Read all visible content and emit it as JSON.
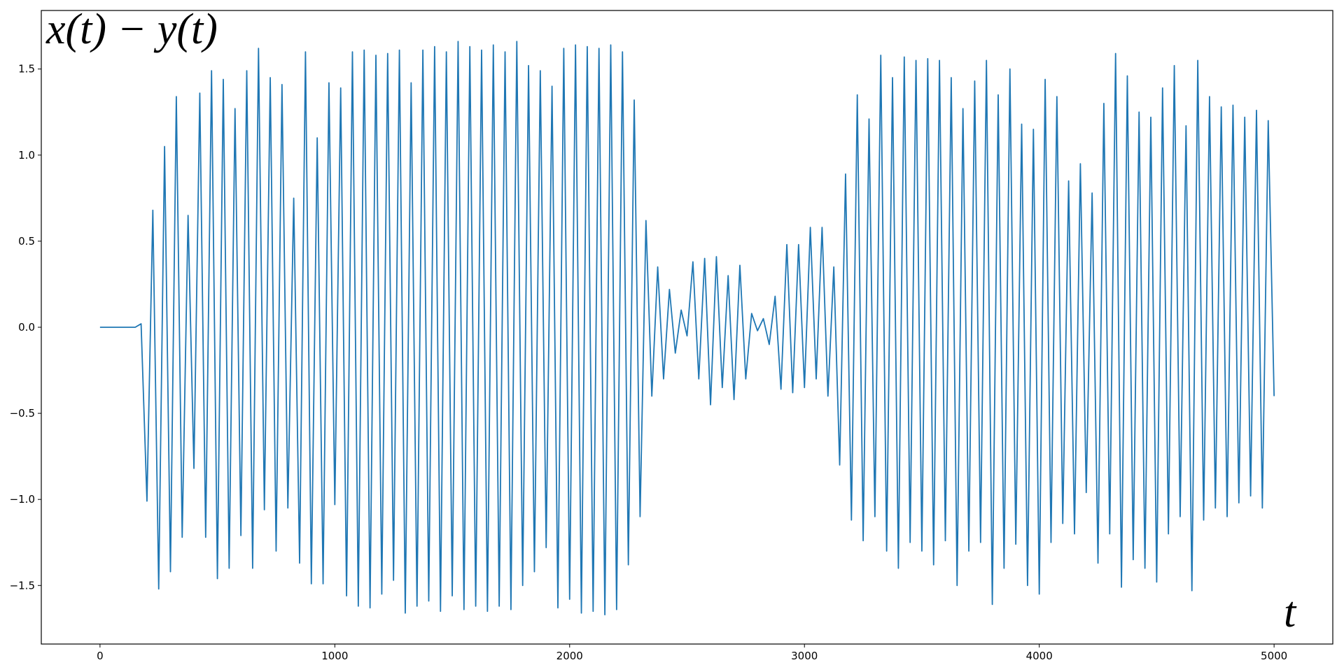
{
  "chart_data": {
    "type": "line",
    "annotation": "x(t) − y(t)",
    "x_label": "t",
    "x": [
      0,
      25,
      50,
      75,
      100,
      125,
      150,
      175,
      200,
      225,
      250,
      275,
      300,
      325,
      350,
      375,
      400,
      425,
      450,
      475,
      500,
      525,
      550,
      575,
      600,
      625,
      650,
      675,
      700,
      725,
      750,
      775,
      800,
      825,
      850,
      875,
      900,
      925,
      950,
      975,
      1000,
      1025,
      1050,
      1075,
      1100,
      1125,
      1150,
      1175,
      1200,
      1225,
      1250,
      1275,
      1300,
      1325,
      1350,
      1375,
      1400,
      1425,
      1450,
      1475,
      1500,
      1525,
      1550,
      1575,
      1600,
      1625,
      1650,
      1675,
      1700,
      1725,
      1750,
      1775,
      1800,
      1825,
      1850,
      1875,
      1900,
      1925,
      1950,
      1975,
      2000,
      2025,
      2050,
      2075,
      2100,
      2125,
      2150,
      2175,
      2200,
      2225,
      2250,
      2275,
      2300,
      2325,
      2350,
      2375,
      2400,
      2425,
      2450,
      2475,
      2500,
      2525,
      2550,
      2575,
      2600,
      2625,
      2650,
      2675,
      2700,
      2725,
      2750,
      2775,
      2800,
      2825,
      2850,
      2875,
      2900,
      2925,
      2950,
      2975,
      3000,
      3025,
      3050,
      3075,
      3100,
      3125,
      3150,
      3175,
      3200,
      3225,
      3250,
      3275,
      3300,
      3325,
      3350,
      3375,
      3400,
      3425,
      3450,
      3475,
      3500,
      3525,
      3550,
      3575,
      3600,
      3625,
      3650,
      3675,
      3700,
      3725,
      3750,
      3775,
      3800,
      3825,
      3850,
      3875,
      3900,
      3925,
      3950,
      3975,
      4000,
      4025,
      4050,
      4075,
      4100,
      4125,
      4150,
      4175,
      4200,
      4225,
      4250,
      4275,
      4300,
      4325,
      4350,
      4375,
      4400,
      4425,
      4450,
      4475,
      4500,
      4525,
      4550,
      4575,
      4600,
      4625,
      4650,
      4675,
      4700,
      4725,
      4750,
      4775,
      4800,
      4825,
      4850,
      4875,
      4900,
      4925,
      4950,
      4975,
      5000
    ],
    "series": [
      {
        "color": "#1f77b4",
        "values": [
          0,
          0,
          0,
          0,
          0,
          0,
          0,
          0.02,
          -1.01,
          0.68,
          -1.52,
          1.05,
          -1.42,
          1.34,
          -1.22,
          0.65,
          -0.82,
          1.36,
          -1.22,
          1.49,
          -1.46,
          1.44,
          -1.4,
          1.27,
          -1.21,
          1.49,
          -1.4,
          1.62,
          -1.06,
          1.45,
          -1.3,
          1.41,
          -1.05,
          0.75,
          -1.37,
          1.6,
          -1.49,
          1.1,
          -1.49,
          1.42,
          -1.03,
          1.39,
          -1.56,
          1.6,
          -1.62,
          1.61,
          -1.63,
          1.58,
          -1.55,
          1.59,
          -1.47,
          1.61,
          -1.66,
          1.42,
          -1.62,
          1.61,
          -1.59,
          1.63,
          -1.65,
          1.6,
          -1.56,
          1.66,
          -1.64,
          1.63,
          -1.62,
          1.61,
          -1.65,
          1.64,
          -1.62,
          1.6,
          -1.64,
          1.66,
          -1.5,
          1.52,
          -1.42,
          1.49,
          -1.28,
          1.4,
          -1.63,
          1.62,
          -1.58,
          1.64,
          -1.66,
          1.63,
          -1.65,
          1.62,
          -1.67,
          1.64,
          -1.64,
          1.6,
          -1.38,
          1.32,
          -1.1,
          0.62,
          -0.4,
          0.35,
          -0.3,
          0.22,
          -0.15,
          0.1,
          -0.05,
          0.38,
          -0.3,
          0.4,
          -0.45,
          0.41,
          -0.35,
          0.3,
          -0.42,
          0.36,
          -0.3,
          0.08,
          -0.02,
          0.05,
          -0.1,
          0.18,
          -0.36,
          0.48,
          -0.38,
          0.48,
          -0.35,
          0.58,
          -0.3,
          0.58,
          -0.4,
          0.35,
          -0.8,
          0.89,
          -1.12,
          1.35,
          -1.24,
          1.21,
          -1.1,
          1.58,
          -1.3,
          1.45,
          -1.4,
          1.57,
          -1.25,
          1.55,
          -1.3,
          1.56,
          -1.38,
          1.55,
          -1.24,
          1.45,
          -1.5,
          1.27,
          -1.3,
          1.43,
          -1.25,
          1.55,
          -1.61,
          1.35,
          -1.4,
          1.5,
          -1.26,
          1.18,
          -1.5,
          1.15,
          -1.55,
          1.44,
          -1.25,
          1.34,
          -1.14,
          0.85,
          -1.2,
          0.95,
          -0.96,
          0.78,
          -1.37,
          1.3,
          -1.2,
          1.59,
          -1.51,
          1.46,
          -1.35,
          1.25,
          -1.4,
          1.22,
          -1.48,
          1.39,
          -1.2,
          1.52,
          -1.1,
          1.17,
          -1.53,
          1.55,
          -1.12,
          1.34,
          -1.05,
          1.28,
          -1.1,
          1.29,
          -1.02,
          1.22,
          -0.98,
          1.26,
          -1.05,
          1.2,
          -0.4
        ]
      }
    ],
    "xlim": [
      -250,
      5250
    ],
    "ylim": [
      -1.84,
      1.84
    ],
    "xticks": [
      0,
      1000,
      2000,
      3000,
      4000,
      5000
    ],
    "yticks": [
      {
        "value": -1.5,
        "label": "−1.5"
      },
      {
        "value": -1,
        "label": "−1.0"
      },
      {
        "value": -0.5,
        "label": "−0.5"
      },
      {
        "value": 0,
        "label": "0.0"
      },
      0.5,
      {
        "value": 1,
        "label": "1.0"
      },
      1.5
    ],
    "grid": false
  }
}
